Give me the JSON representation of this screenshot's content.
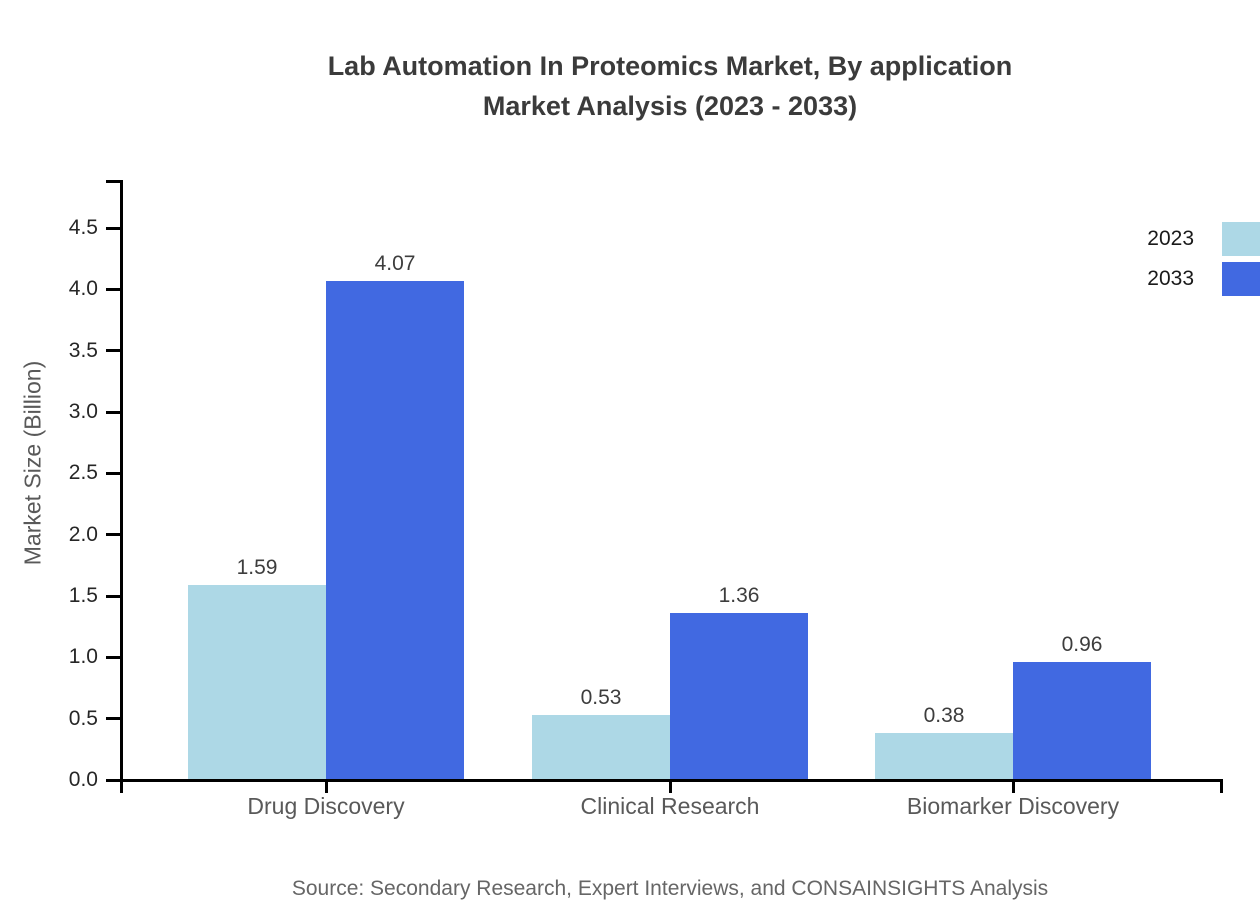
{
  "title": {
    "line1": "Lab Automation In Proteomics Market, By application",
    "line2": "Market Analysis (2023 - 2033)"
  },
  "chart_data": {
    "type": "bar",
    "categories": [
      "Drug Discovery",
      "Clinical Research",
      "Biomarker Discovery"
    ],
    "series": [
      {
        "name": "2023",
        "color": "#ADD8E6",
        "values": [
          1.59,
          0.53,
          0.38
        ]
      },
      {
        "name": "2033",
        "color": "#4169E1",
        "values": [
          4.07,
          1.36,
          0.96
        ]
      }
    ],
    "value_labels": [
      [
        "1.59",
        "0.53",
        "0.38"
      ],
      [
        "4.07",
        "1.36",
        "0.96"
      ]
    ],
    "xlabel": "",
    "ylabel": "Market Size (Billion)",
    "ylim": [
      0,
      4.5
    ],
    "ytick_labels": [
      "0.0",
      "0.5",
      "1.0",
      "1.5",
      "2.0",
      "2.5",
      "3.0",
      "3.5",
      "4.0",
      "4.5"
    ],
    "grid": false,
    "legend_position": "top-right",
    "axis_color": "#000000"
  },
  "source": "Source: Secondary Research, Expert Interviews, and CONSAINSIGHTS Analysis"
}
